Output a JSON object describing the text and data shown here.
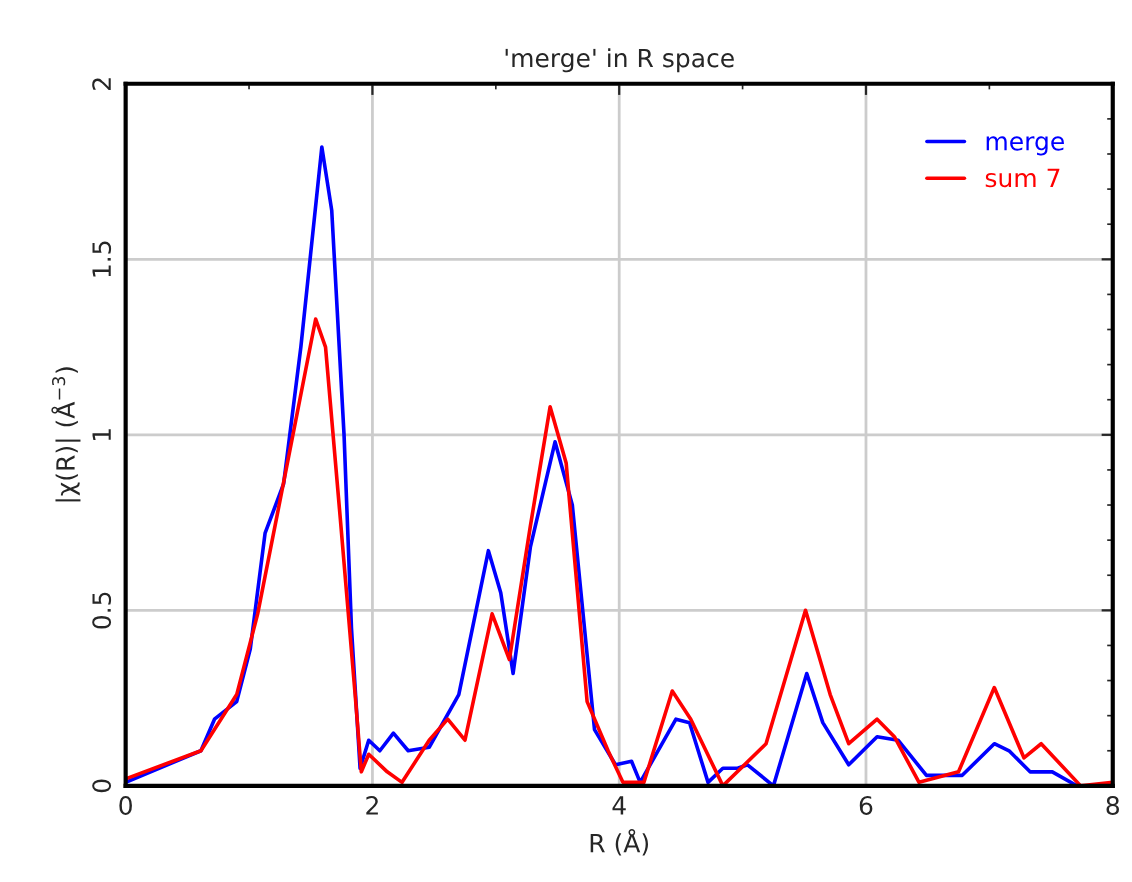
{
  "chart_data": {
    "type": "line",
    "title": "'merge' in R space",
    "xlabel": "R (Å)",
    "ylabel": "|χ(R)| (Å$^{−3}$)",
    "xlim": [
      0,
      8
    ],
    "ylim": [
      0,
      2
    ],
    "xticks": [
      0,
      2,
      4,
      6,
      8
    ],
    "yticks": [
      0,
      0.5,
      1,
      1.5,
      2
    ],
    "grid": true,
    "legend": "top right",
    "line_style": "solid",
    "marker": "none",
    "series": [
      {
        "name": "merge",
        "color": "#0000ff",
        "x": [
          0,
          0.61,
          0.72,
          0.9,
          1.01,
          1.13,
          1.28,
          1.42,
          1.59,
          1.67,
          1.77,
          1.83,
          1.9,
          1.97,
          2.06,
          2.17,
          2.29,
          2.46,
          2.7,
          2.94,
          3.04,
          3.14,
          3.28,
          3.48,
          3.62,
          3.8,
          3.97,
          4.1,
          4.17,
          4.46,
          4.57,
          4.72,
          4.84,
          4.96,
          5.04,
          5.25,
          5.52,
          5.65,
          5.86,
          6.09,
          6.26,
          6.49,
          6.78,
          7.04,
          7.16,
          7.33,
          7.51,
          7.71
        ],
        "values": [
          0.01,
          0.1,
          0.19,
          0.24,
          0.39,
          0.72,
          0.86,
          1.25,
          1.82,
          1.64,
          1.0,
          0.45,
          0.05,
          0.13,
          0.1,
          0.15,
          0.1,
          0.11,
          0.26,
          0.67,
          0.55,
          0.32,
          0.68,
          0.98,
          0.8,
          0.16,
          0.06,
          0.07,
          0.01,
          0.19,
          0.18,
          0.01,
          0.05,
          0.05,
          0.06,
          0,
          0.32,
          0.18,
          0.06,
          0.14,
          0.13,
          0.03,
          0.03,
          0.12,
          0.1,
          0.04,
          0.04,
          0
        ]
      },
      {
        "name": "sum 7",
        "color": "#ff0000",
        "x": [
          0,
          0.61,
          0.9,
          1.07,
          1.3,
          1.54,
          1.62,
          1.74,
          1.86,
          1.91,
          1.97,
          2.12,
          2.24,
          2.46,
          2.61,
          2.75,
          2.97,
          3.11,
          3.28,
          3.44,
          3.57,
          3.74,
          3.91,
          4.03,
          4.2,
          4.43,
          4.58,
          4.84,
          5.19,
          5.51,
          5.71,
          5.86,
          6.09,
          6.23,
          6.43,
          6.75,
          7.04,
          7.28,
          7.42,
          7.74,
          8
        ],
        "values": [
          0.02,
          0.1,
          0.26,
          0.49,
          0.9,
          1.33,
          1.25,
          0.76,
          0.26,
          0.04,
          0.09,
          0.04,
          0.01,
          0.13,
          0.19,
          0.13,
          0.49,
          0.36,
          0.74,
          1.08,
          0.92,
          0.24,
          0.1,
          0.01,
          0.01,
          0.27,
          0.19,
          0,
          0.12,
          0.5,
          0.26,
          0.12,
          0.19,
          0.14,
          0.01,
          0.04,
          0.28,
          0.08,
          0.12,
          0,
          0.01
        ]
      }
    ]
  }
}
